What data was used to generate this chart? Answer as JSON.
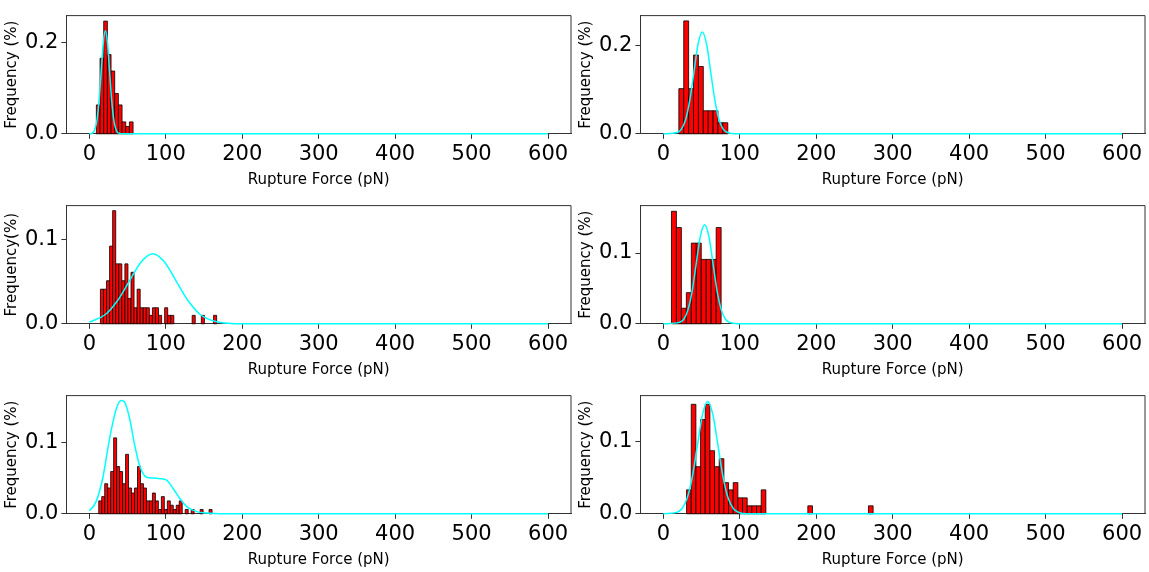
{
  "chart_data": [
    {
      "type": "histogram",
      "xlabel": "Rupture Force (pN)",
      "ylabel": "Frequency (%)",
      "color": "#ff0000",
      "xlim": [
        -30,
        630
      ],
      "xticks": [
        0,
        100,
        200,
        300,
        400,
        500,
        600
      ],
      "ylim": [
        0,
        0.258
      ],
      "yticks": [
        {
          "value": 0,
          "label": "0.0"
        },
        {
          "value": 0.2,
          "label": "0.2"
        }
      ],
      "grid": false,
      "legend": false,
      "bins": [
        9.2,
        14,
        18.8,
        23.6,
        28.4,
        33.2,
        38,
        42.8,
        47.6,
        52.4,
        57.2
      ],
      "values": [
        0.063,
        0.165,
        0.246,
        0.173,
        0.137,
        0.088,
        0.063,
        0.026,
        0.016,
        0.026
      ],
      "series": [
        {
          "type": "line",
          "color": "#00ffff",
          "x": [
            0,
            4.5,
            10,
            12.75,
            15.5,
            18.25,
            21,
            23.75,
            26.5,
            29.25,
            32,
            34.75,
            37.5,
            45,
            600
          ],
          "values": [
            0,
            0.002,
            0.03,
            0.073,
            0.136,
            0.199,
            0.225,
            0.199,
            0.136,
            0.073,
            0.03,
            0.01,
            0.002,
            0,
            0
          ]
        }
      ]
    },
    {
      "type": "histogram",
      "xlabel": "Rupture Force (pN)",
      "ylabel": "Frequency (%)",
      "color": "#ff0000",
      "xlim": [
        -30,
        630
      ],
      "xticks": [
        0,
        100,
        200,
        300,
        400,
        500,
        600
      ],
      "ylim": [
        0,
        0.267
      ],
      "yticks": [
        {
          "value": 0,
          "label": "0.0"
        },
        {
          "value": 0.2,
          "label": "0.2"
        }
      ],
      "grid": false,
      "legend": false,
      "bins": [
        20.3,
        26.7,
        33.1,
        39.5,
        45.9,
        52.3,
        58.7,
        65.1,
        71.5,
        77.9,
        84.3
      ],
      "values": [
        0.102,
        0.255,
        0.102,
        0.178,
        0.152,
        0.052,
        0.052,
        0.052,
        0.025,
        0.025
      ],
      "series": [
        {
          "type": "line",
          "color": "#00ffff",
          "x": [
            0,
            18,
            23.5,
            29,
            34.5,
            40,
            45.5,
            51,
            56.5,
            62,
            67.5,
            73,
            78.5,
            84,
            95,
            600
          ],
          "values": [
            0,
            0.003,
            0.01,
            0.031,
            0.075,
            0.139,
            0.203,
            0.23,
            0.203,
            0.139,
            0.075,
            0.031,
            0.01,
            0.003,
            0,
            0
          ]
        }
      ]
    },
    {
      "type": "histogram",
      "xlabel": "Rupture Force (pN)",
      "ylabel": "Frequency(%)",
      "color": "#ff0000",
      "xlim": [
        -30,
        630
      ],
      "xticks": [
        0,
        100,
        200,
        300,
        400,
        500,
        600
      ],
      "ylim": [
        0,
        0.14
      ],
      "yticks": [
        {
          "value": 0,
          "label": "0.0"
        },
        {
          "value": 0.1,
          "label": "0.1"
        }
      ],
      "grid": false,
      "legend": false,
      "bins": [
        14.5,
        18.5,
        22.5,
        26.5,
        30.5,
        34.5,
        38.5,
        42.5,
        46.5,
        50.5,
        54.5,
        58.5,
        62.5,
        66.5,
        70.5,
        74.5,
        78.5,
        82.5,
        86.5,
        90.5,
        94.5,
        98.5,
        102.5,
        106.5,
        110.5,
        114.5,
        118.5,
        122.5,
        126.5,
        130.5,
        134.5,
        138.5,
        142.5,
        146.5,
        150.5,
        154.5,
        158.5,
        162.5,
        166.5
      ],
      "values": [
        0.041,
        0.041,
        0.051,
        0.092,
        0.134,
        0.071,
        0.071,
        0.051,
        0.071,
        0.03,
        0.061,
        0.019,
        0.041,
        0.019,
        0.019,
        0.019,
        0.01,
        0.019,
        0.019,
        0.01,
        0,
        0.019,
        0.01,
        0.01,
        0,
        0,
        0,
        0,
        0,
        0,
        0.01,
        0,
        0,
        0.01,
        0,
        0,
        0,
        0.01
      ],
      "series": [
        {
          "type": "line",
          "color": "#00ffff",
          "x": [
            0,
            21,
            36.5,
            52,
            67.5,
            83,
            98.5,
            114,
            129.5,
            145,
            160.5,
            176,
            207,
            600
          ],
          "values": [
            0.002,
            0.011,
            0.027,
            0.05,
            0.073,
            0.083,
            0.073,
            0.05,
            0.027,
            0.011,
            0.004,
            0.001,
            0,
            0
          ]
        }
      ]
    },
    {
      "type": "histogram",
      "xlabel": "Rupture Force (pN)",
      "ylabel": "Frequency (%)",
      "color": "#ff0000",
      "xlim": [
        -30,
        630
      ],
      "xticks": [
        0,
        100,
        200,
        300,
        400,
        500,
        600
      ],
      "ylim": [
        0,
        0.167
      ],
      "yticks": [
        {
          "value": 0,
          "label": "0.0"
        },
        {
          "value": 0.1,
          "label": "0.1"
        }
      ],
      "grid": false,
      "legend": false,
      "bins": [
        10.6,
        17.1,
        23.6,
        30.1,
        36.6,
        43.1,
        49.6,
        56.1,
        62.6,
        69.1,
        75.6
      ],
      "values": [
        0.159,
        0.136,
        0.022,
        0.044,
        0.114,
        0.114,
        0.091,
        0.091,
        0.091,
        0.136
      ],
      "series": [
        {
          "type": "line",
          "color": "#00ffff",
          "x": [
            0,
            21,
            26.5,
            32,
            37.5,
            43,
            48.5,
            54,
            59.5,
            65,
            70.5,
            76,
            81.5,
            87,
            100,
            600
          ],
          "values": [
            0,
            0.002,
            0.006,
            0.019,
            0.045,
            0.085,
            0.124,
            0.14,
            0.124,
            0.085,
            0.045,
            0.019,
            0.006,
            0.002,
            0,
            0
          ]
        }
      ]
    },
    {
      "type": "histogram",
      "xlabel": "Rupture Force (pN)",
      "ylabel": "Frequency (%)",
      "color": "#ff0000",
      "xlim": [
        -30,
        630
      ],
      "xticks": [
        0,
        100,
        200,
        300,
        400,
        500,
        600
      ],
      "ylim": [
        0,
        0.165
      ],
      "yticks": [
        {
          "value": 0,
          "label": "0.0"
        },
        {
          "value": 0.1,
          "label": "0.1"
        }
      ],
      "grid": false,
      "legend": false,
      "bins": [
        12.3,
        16.2,
        20.1,
        24,
        27.9,
        31.8,
        35.7,
        39.6,
        43.5,
        47.4,
        51.3,
        55.2,
        59.1,
        63,
        66.9,
        70.8,
        74.7,
        78.6,
        82.5,
        86.4,
        90.3,
        94.2,
        98.1,
        102,
        105.9,
        109.8,
        113.7,
        117.6,
        121.5,
        125.4,
        129.3,
        133.2,
        137.1,
        141,
        144.9,
        148.8,
        152.7,
        156.6,
        160.5
      ],
      "values": [
        0.018,
        0.024,
        0.042,
        0.036,
        0.059,
        0.106,
        0.066,
        0.059,
        0.042,
        0.083,
        0.036,
        0.029,
        0.036,
        0.066,
        0.042,
        0.036,
        0.018,
        0.018,
        0.029,
        0.018,
        0.006,
        0.024,
        0.006,
        0.018,
        0.012,
        0.006,
        0.012,
        0.018,
        0,
        0.006,
        0,
        0.006,
        0,
        0,
        0.006,
        0,
        0,
        0.006
      ],
      "series": [
        {
          "type": "line",
          "color": "#00ffff",
          "x": [
            0,
            8.8,
            17.6,
            26.3,
            35.1,
            41.7,
            46.1,
            52.7,
            59.3,
            65.9,
            74.7,
            83.4,
            92.2,
            101,
            109.8,
            118.6,
            127.4,
            140.5,
            153.7,
            171,
            600
          ],
          "values": [
            0.004,
            0.017,
            0.05,
            0.104,
            0.146,
            0.158,
            0.156,
            0.133,
            0.096,
            0.067,
            0.051,
            0.05,
            0.049,
            0.047,
            0.035,
            0.021,
            0.01,
            0.003,
            0.001,
            0,
            0
          ]
        }
      ]
    },
    {
      "type": "histogram",
      "xlabel": "Rupture Force (pN)",
      "ylabel": "Frequency (%)",
      "color": "#ff0000",
      "xlim": [
        -30,
        630
      ],
      "xticks": [
        0,
        100,
        200,
        300,
        400,
        500,
        600
      ],
      "ylim": [
        0,
        0.163
      ],
      "yticks": [
        {
          "value": 0,
          "label": "0.0"
        },
        {
          "value": 0.1,
          "label": "0.1"
        }
      ],
      "grid": false,
      "legend": false,
      "bins": [
        30.4,
        36.5,
        42.6,
        48.7,
        54.8,
        60.9,
        67,
        73.1,
        79.2,
        85.3,
        91.4,
        97.5,
        103.6,
        109.7,
        115.8,
        121.9,
        128,
        134.1,
        140.2,
        146.3,
        152.4,
        158.5,
        164.6,
        170.7,
        176.8,
        182.9,
        189,
        195.1,
        201.2,
        207.3,
        213.4,
        219.5,
        225.6,
        231.7,
        237.8,
        243.9,
        250,
        256.1,
        262.2,
        268.3,
        274.4
      ],
      "values": [
        0.033,
        0.151,
        0.065,
        0.13,
        0.151,
        0.087,
        0.065,
        0.076,
        0.043,
        0.033,
        0.043,
        0.022,
        0.022,
        0.011,
        0.011,
        0.011,
        0.033,
        0,
        0,
        0,
        0,
        0,
        0,
        0,
        0,
        0,
        0.011,
        0,
        0,
        0,
        0,
        0,
        0,
        0,
        0,
        0,
        0,
        0,
        0,
        0.011
      ],
      "series": [
        {
          "type": "line",
          "color": "#00ffff",
          "x": [
            0,
            17.5,
            24.25,
            31,
            37.75,
            44.5,
            51.25,
            58,
            64.75,
            71.5,
            78.25,
            85,
            91.75,
            98.5,
            112,
            600
          ],
          "values": [
            0,
            0.002,
            0.007,
            0.021,
            0.05,
            0.094,
            0.137,
            0.155,
            0.137,
            0.094,
            0.05,
            0.021,
            0.007,
            0.002,
            0,
            0
          ]
        }
      ]
    }
  ]
}
